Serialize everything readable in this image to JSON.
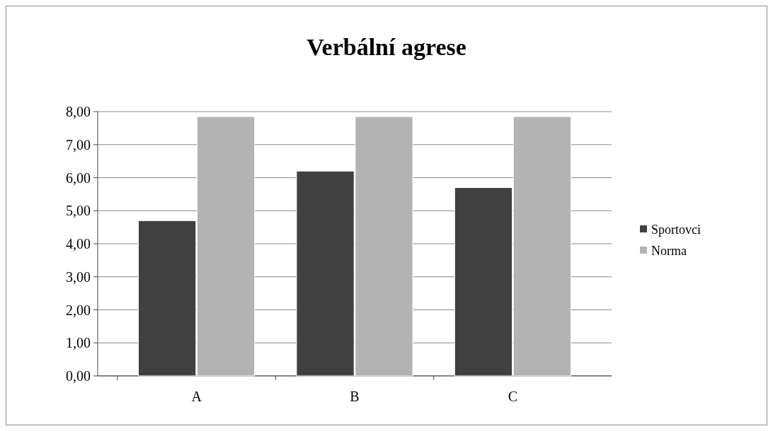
{
  "chart_data": {
    "type": "bar",
    "title": "Verbální agrese",
    "categories": [
      "A",
      "B",
      "C"
    ],
    "series": [
      {
        "name": "Sportovci",
        "color": "#404040",
        "values": [
          4.7,
          6.2,
          5.7
        ]
      },
      {
        "name": "Norma",
        "color": "#b3b3b3",
        "values": [
          7.85,
          7.85,
          7.85
        ]
      }
    ],
    "ylim": [
      0,
      8
    ],
    "yticks": [
      {
        "value": 0,
        "label": "0,00"
      },
      {
        "value": 1,
        "label": "1,00"
      },
      {
        "value": 2,
        "label": "2,00"
      },
      {
        "value": 3,
        "label": "3,00"
      },
      {
        "value": 4,
        "label": "4,00"
      },
      {
        "value": 5,
        "label": "5,00"
      },
      {
        "value": 6,
        "label": "6,00"
      },
      {
        "value": 7,
        "label": "7,00"
      },
      {
        "value": 8,
        "label": "8,00"
      }
    ],
    "grid": "y",
    "legend": "right"
  }
}
